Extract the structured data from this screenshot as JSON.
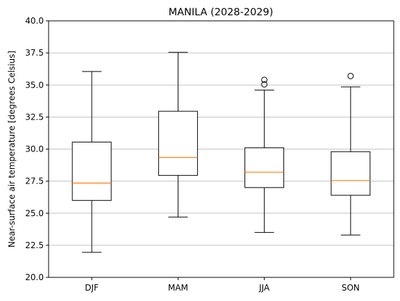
{
  "chart_data": {
    "type": "box",
    "title": "MANILA (2028-2029)",
    "xlabel": "",
    "ylabel": "Near-surface air temperature [degrees Celsius]",
    "ylim": [
      20.0,
      40.0
    ],
    "yticks": [
      "20.0",
      "22.5",
      "25.0",
      "27.5",
      "30.0",
      "32.5",
      "35.0",
      "37.5",
      "40.0"
    ],
    "grid": "horizontal",
    "categories": [
      "DJF",
      "MAM",
      "JJA",
      "SON"
    ],
    "boxes": [
      {
        "category": "DJF",
        "whisker_low": 21.95,
        "q1": 26.0,
        "median": 27.35,
        "q3": 30.55,
        "whisker_high": 36.05,
        "outliers": []
      },
      {
        "category": "MAM",
        "whisker_low": 24.7,
        "q1": 27.95,
        "median": 29.35,
        "q3": 32.95,
        "whisker_high": 37.55,
        "outliers": []
      },
      {
        "category": "JJA",
        "whisker_low": 23.5,
        "q1": 27.0,
        "median": 28.2,
        "q3": 30.1,
        "whisker_high": 34.6,
        "outliers": [
          35.05,
          35.4
        ]
      },
      {
        "category": "SON",
        "whisker_low": 23.3,
        "q1": 26.4,
        "median": 27.55,
        "q3": 29.8,
        "whisker_high": 34.85,
        "outliers": [
          35.7
        ]
      }
    ],
    "colors": {
      "box": "#000000",
      "median": "#ff7f0e",
      "grid": "#b0b0b0"
    }
  }
}
